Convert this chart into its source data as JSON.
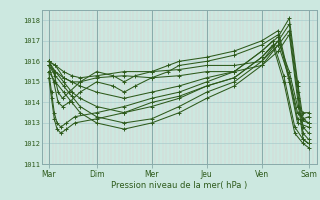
{
  "title": "",
  "xlabel": "Pression niveau de la mer( hPa )",
  "ylabel": "",
  "bg_color": "#cce8e0",
  "line_color": "#2d5a1b",
  "grid_v_color": "#e0c8c8",
  "grid_h_color": "#aacccc",
  "border_color": "#88aaaa",
  "ylim": [
    1011,
    1018.5
  ],
  "yticks": [
    1011,
    1012,
    1013,
    1014,
    1015,
    1016,
    1017,
    1018
  ],
  "day_positions": [
    0.13,
    1.0,
    2.0,
    3.0,
    4.0,
    4.85
  ],
  "day_labels": [
    "Mar",
    "Dim",
    "Mer",
    "Jeu",
    "Ven",
    "Sam"
  ],
  "xlim": [
    0.0,
    5.0
  ],
  "lines": [
    [
      0.13,
      1016.0,
      0.25,
      1015.8,
      0.4,
      1015.2,
      0.55,
      1015.0,
      0.7,
      1014.8,
      1.0,
      1014.5,
      1.5,
      1014.2,
      2.0,
      1014.5,
      2.5,
      1014.8,
      3.0,
      1015.2,
      3.5,
      1015.5,
      4.0,
      1016.5,
      4.3,
      1017.2,
      4.5,
      1018.1,
      4.65,
      1015.0,
      4.75,
      1013.2,
      4.85,
      1013.0
    ],
    [
      0.13,
      1016.0,
      0.25,
      1015.5,
      0.4,
      1015.0,
      0.55,
      1014.5,
      0.7,
      1014.2,
      1.0,
      1013.8,
      1.5,
      1013.5,
      2.0,
      1013.8,
      2.5,
      1014.2,
      3.0,
      1014.8,
      3.5,
      1015.2,
      4.0,
      1016.2,
      4.3,
      1017.0,
      4.5,
      1017.8,
      4.65,
      1014.8,
      4.75,
      1012.8,
      4.85,
      1012.5
    ],
    [
      0.13,
      1015.8,
      0.25,
      1015.3,
      0.4,
      1014.8,
      0.55,
      1014.3,
      0.7,
      1013.8,
      1.0,
      1013.3,
      1.5,
      1013.0,
      2.0,
      1013.2,
      2.5,
      1013.8,
      3.0,
      1014.5,
      3.5,
      1015.0,
      4.0,
      1016.0,
      4.3,
      1016.8,
      4.5,
      1017.5,
      4.65,
      1014.5,
      4.75,
      1012.5,
      4.85,
      1012.2
    ],
    [
      0.13,
      1015.5,
      0.25,
      1015.0,
      0.4,
      1014.5,
      0.55,
      1014.0,
      0.7,
      1013.5,
      1.0,
      1013.0,
      1.5,
      1012.7,
      2.0,
      1013.0,
      2.5,
      1013.5,
      3.0,
      1014.2,
      3.5,
      1014.8,
      4.0,
      1015.8,
      4.3,
      1016.5,
      4.5,
      1017.3,
      4.65,
      1014.2,
      4.75,
      1012.2,
      4.85,
      1012.0
    ],
    [
      0.13,
      1015.8,
      0.25,
      1015.5,
      0.4,
      1015.2,
      0.55,
      1015.0,
      0.7,
      1015.0,
      1.0,
      1015.2,
      1.5,
      1015.3,
      2.0,
      1015.2,
      2.5,
      1015.3,
      3.0,
      1015.5,
      3.5,
      1015.5,
      4.0,
      1015.8,
      4.3,
      1016.8,
      4.5,
      1015.2,
      4.65,
      1013.5,
      4.75,
      1013.2,
      4.85,
      1013.3
    ],
    [
      0.13,
      1016.0,
      0.25,
      1015.8,
      0.4,
      1015.5,
      0.55,
      1015.3,
      0.7,
      1015.2,
      1.0,
      1015.3,
      1.5,
      1015.5,
      2.0,
      1015.5,
      2.5,
      1015.6,
      3.0,
      1015.8,
      3.5,
      1015.8,
      4.0,
      1016.0,
      4.3,
      1017.0,
      4.5,
      1015.5,
      4.65,
      1013.8,
      4.75,
      1013.5,
      4.85,
      1013.5
    ],
    [
      0.13,
      1016.0,
      0.22,
      1015.5,
      0.3,
      1014.5,
      0.38,
      1014.2,
      0.5,
      1014.5,
      0.7,
      1015.0,
      1.0,
      1015.5,
      1.3,
      1015.3,
      1.5,
      1015.0,
      1.7,
      1015.3,
      2.0,
      1015.5,
      2.3,
      1015.8,
      2.5,
      1016.0,
      3.0,
      1016.2,
      3.5,
      1016.5,
      4.0,
      1017.0,
      4.3,
      1017.5,
      4.5,
      1015.2,
      4.65,
      1013.2,
      4.85,
      1013.0
    ],
    [
      0.13,
      1015.8,
      0.22,
      1015.0,
      0.3,
      1014.0,
      0.38,
      1013.8,
      0.5,
      1014.0,
      0.7,
      1014.5,
      1.0,
      1015.0,
      1.3,
      1014.8,
      1.5,
      1014.5,
      1.7,
      1014.8,
      2.0,
      1015.2,
      2.3,
      1015.5,
      2.5,
      1015.8,
      3.0,
      1016.0,
      3.5,
      1016.3,
      4.0,
      1016.8,
      4.3,
      1017.3,
      4.5,
      1015.0,
      4.65,
      1013.0,
      4.85,
      1012.8
    ],
    [
      0.13,
      1015.5,
      0.18,
      1014.5,
      0.23,
      1013.5,
      0.28,
      1013.0,
      0.35,
      1012.8,
      0.45,
      1013.0,
      0.6,
      1013.3,
      1.0,
      1013.5,
      1.5,
      1013.8,
      2.0,
      1014.2,
      2.5,
      1014.5,
      3.0,
      1015.0,
      3.5,
      1015.5,
      4.0,
      1016.5,
      4.2,
      1017.0,
      4.4,
      1015.3,
      4.6,
      1012.8,
      4.75,
      1012.2,
      4.85,
      1012.0
    ],
    [
      0.13,
      1015.2,
      0.18,
      1014.2,
      0.23,
      1013.2,
      0.28,
      1012.7,
      0.35,
      1012.5,
      0.45,
      1012.7,
      0.6,
      1013.0,
      1.0,
      1013.2,
      1.5,
      1013.5,
      2.0,
      1014.0,
      2.5,
      1014.3,
      3.0,
      1014.8,
      3.5,
      1015.2,
      4.0,
      1016.2,
      4.2,
      1016.8,
      4.4,
      1015.0,
      4.6,
      1012.5,
      4.75,
      1012.0,
      4.85,
      1011.8
    ]
  ]
}
